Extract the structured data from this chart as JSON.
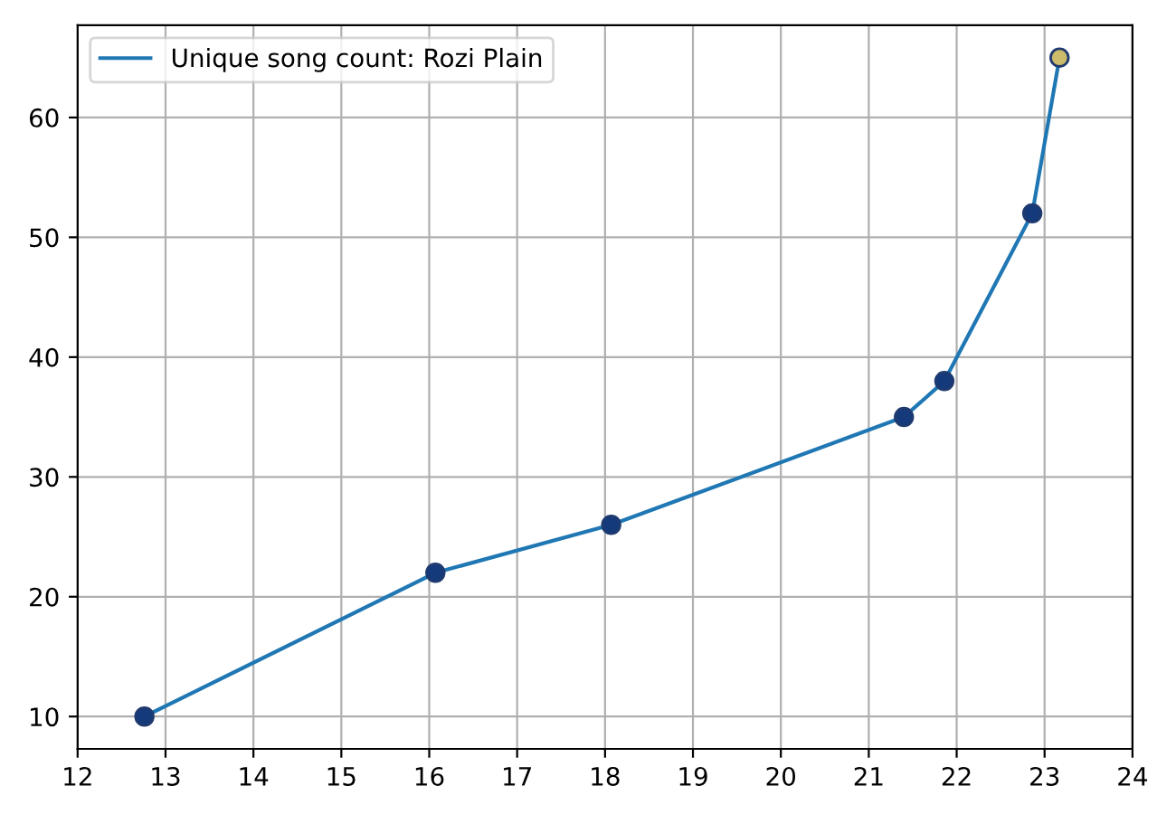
{
  "chart_data": {
    "type": "line",
    "xlim": [
      12,
      24
    ],
    "xticks": [
      12,
      13,
      14,
      15,
      16,
      17,
      18,
      19,
      20,
      21,
      22,
      23,
      24
    ],
    "ylim": [
      7.3,
      67.7
    ],
    "yticks": [
      10,
      20,
      30,
      40,
      50,
      60
    ],
    "grid": true,
    "legend": "top left",
    "series": [
      {
        "name": "Unique song count: Rozi Plain",
        "color": "#1f77b4",
        "marker": "none",
        "x": [
          12.76,
          16.07,
          18.07,
          21.4,
          21.86,
          22.86,
          23.17
        ],
        "values": [
          10,
          22,
          26,
          35,
          38,
          52,
          65
        ]
      },
      {
        "type": "scatter",
        "colors": [
          "#143a7c",
          "#143a7c",
          "#143a7c",
          "#143a7c",
          "#143a7c",
          "#143a7c",
          "#cbbb6b"
        ],
        "marker": "circle",
        "x": [
          12.76,
          16.07,
          18.07,
          21.4,
          21.86,
          22.86,
          23.17
        ],
        "values": [
          10,
          22,
          26,
          35,
          38,
          52,
          65
        ]
      }
    ]
  }
}
